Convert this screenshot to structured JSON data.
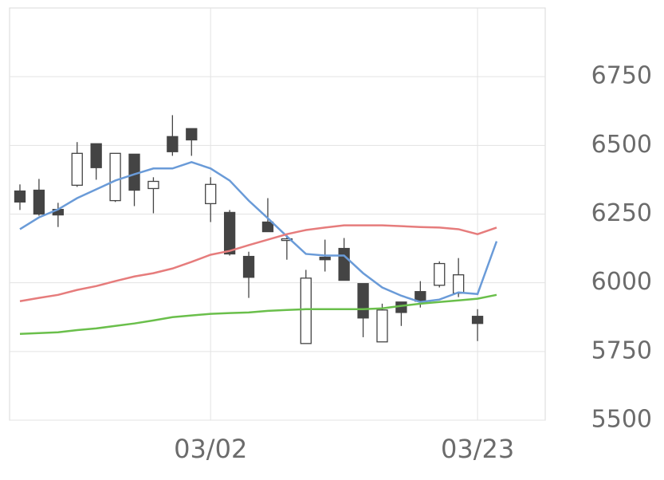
{
  "chart_data": {
    "type": "candlestick",
    "categories": [
      null,
      null,
      null,
      null,
      null,
      null,
      null,
      null,
      null,
      null,
      "03/02",
      null,
      null,
      null,
      null,
      null,
      null,
      null,
      null,
      null,
      null,
      null,
      null,
      null,
      "03/23",
      null
    ],
    "open": [
      6334,
      6337,
      6267,
      6355,
      6506,
      6299,
      6468,
      6343,
      6532,
      6561,
      6288,
      6256,
      6096,
      6221,
      6154,
      5779,
      6093,
      6125,
      5997,
      5785,
      5930,
      5968,
      5991,
      5962,
      5878,
      null
    ],
    "high": [
      6358,
      6378,
      6291,
      6512,
      6506,
      6471,
      6468,
      6384,
      6610,
      6561,
      6384,
      6265,
      6113,
      6308,
      6180,
      6047,
      6157,
      6163,
      5997,
      5924,
      5930,
      6006,
      6078,
      6090,
      5904,
      null
    ],
    "low": [
      6265,
      6244,
      6203,
      6349,
      6375,
      6294,
      6279,
      6253,
      6462,
      6462,
      6221,
      6099,
      5945,
      6186,
      6084,
      5779,
      6041,
      6009,
      5802,
      5785,
      5843,
      5910,
      5983,
      5948,
      5788,
      null
    ],
    "close": [
      6294,
      6250,
      6247,
      6471,
      6419,
      6471,
      6337,
      6369,
      6477,
      6520,
      6358,
      6105,
      6020,
      6186,
      6160,
      6017,
      6084,
      6009,
      5872,
      5901,
      5892,
      5933,
      6070,
      6029,
      5852,
      null
    ],
    "up_color": "#ffffff",
    "down_color": "#444444",
    "series": [
      {
        "color": "#6a9bd8",
        "values": [
          6195,
          6238,
          6267,
          6308,
          6340,
          6372,
          6395,
          6416,
          6416,
          6439,
          6416,
          6372,
          6299,
          6235,
          6169,
          6105,
          6099,
          6099,
          6035,
          5983,
          5953,
          5930,
          5939,
          5965,
          5959,
          6151
        ]
      },
      {
        "color": "#e67c7c",
        "values": [
          5933,
          5945,
          5956,
          5974,
          5988,
          6006,
          6023,
          6035,
          6052,
          6076,
          6102,
          6116,
          6137,
          6157,
          6177,
          6192,
          6201,
          6209,
          6209,
          6209,
          6206,
          6203,
          6201,
          6195,
          6177,
          6201
        ]
      },
      {
        "color": "#6abf4b",
        "values": [
          5814,
          5817,
          5820,
          5828,
          5834,
          5843,
          5852,
          5863,
          5875,
          5881,
          5887,
          5890,
          5892,
          5898,
          5901,
          5904,
          5904,
          5904,
          5904,
          5907,
          5916,
          5924,
          5930,
          5936,
          5942,
          5956
        ]
      }
    ],
    "ylim": [
      5500,
      7000
    ],
    "yticks": [
      5500,
      5750,
      6000,
      6250,
      6500,
      6750
    ],
    "grid": true
  }
}
